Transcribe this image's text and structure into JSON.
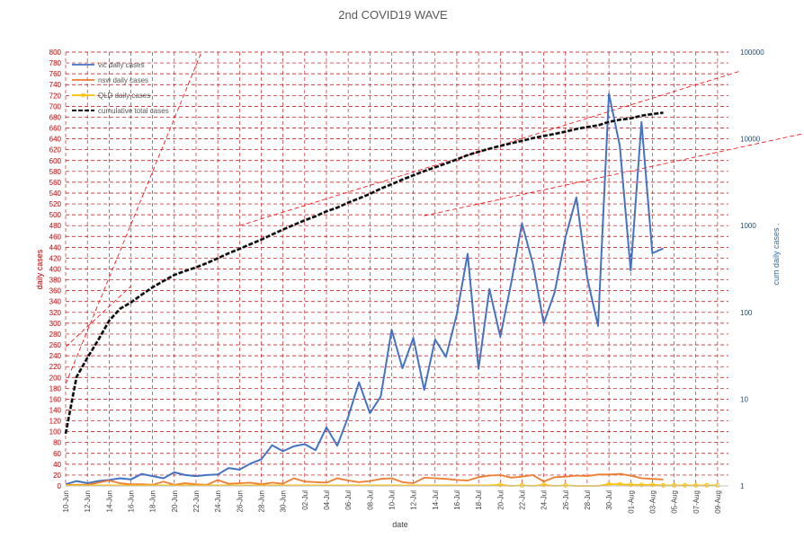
{
  "chart_data": {
    "type": "line",
    "title": "2nd COVID19 WAVE",
    "xlabel": "date",
    "ylabel_left": "daily cases",
    "ylabel_right": "cum daily cases .",
    "ylim_left": [
      0,
      800
    ],
    "ylim_right": [
      1,
      100000
    ],
    "y_right_scale": "log",
    "grid": true,
    "legend_position": "top-left",
    "x_tick_labels": [
      "10-Jun",
      "12-Jun",
      "14-Jun",
      "16-Jun",
      "18-Jun",
      "20-Jun",
      "22-Jun",
      "24-Jun",
      "26-Jun",
      "28-Jun",
      "30-Jun",
      "02-Jul",
      "04-Jul",
      "06-Jul",
      "08-Jul",
      "10-Jul",
      "12-Jul",
      "14-Jul",
      "16-Jul",
      "18-Jul",
      "20-Jul",
      "22-Jul",
      "24-Jul",
      "26-Jul",
      "28-Jul",
      "30-Jul",
      "01-Aug",
      "03-Aug",
      "05-Aug",
      "07-Aug",
      "09-Aug"
    ],
    "y_left_ticks": [
      0,
      20,
      40,
      60,
      80,
      100,
      120,
      140,
      160,
      180,
      200,
      220,
      240,
      260,
      280,
      300,
      320,
      340,
      360,
      380,
      400,
      420,
      440,
      460,
      480,
      500,
      520,
      540,
      560,
      580,
      600,
      620,
      640,
      660,
      680,
      700,
      720,
      740,
      760,
      780,
      800
    ],
    "y_right_ticks": [
      {
        "value": 1,
        "label": "1"
      },
      {
        "value": 10,
        "label": "10"
      },
      {
        "value": 100,
        "label": "100"
      },
      {
        "value": 1000,
        "label": "1000"
      },
      {
        "value": 10000,
        "label": "10000"
      },
      {
        "value": 100000,
        "label": "100000"
      }
    ],
    "series": [
      {
        "name": "vic daily cases",
        "axis": "left",
        "color": "#4472c4",
        "start_day": 0,
        "values": [
          3,
          9,
          5,
          9,
          11,
          14,
          12,
          22,
          18,
          14,
          25,
          20,
          18,
          20,
          21,
          33,
          30,
          41,
          49,
          75,
          64,
          73,
          77,
          66,
          108,
          74,
          127,
          191,
          134,
          165,
          288,
          217,
          273,
          177,
          270,
          238,
          317,
          428,
          216,
          363,
          275,
          374,
          484,
          410,
          300,
          357,
          459,
          532,
          384,
          295,
          723,
          627,
          397,
          671,
          429,
          438
        ]
      },
      {
        "name": "nsw daily cases",
        "axis": "left",
        "color": "#ed7d31",
        "start_day": 0,
        "values": [
          2,
          2,
          2,
          6,
          10,
          5,
          3,
          3,
          2,
          8,
          2,
          5,
          3,
          2,
          11,
          4,
          5,
          6,
          3,
          6,
          4,
          14,
          8,
          7,
          6,
          14,
          10,
          7,
          9,
          13,
          14,
          7,
          5,
          15,
          14,
          13,
          11,
          10,
          16,
          19,
          20,
          15,
          17,
          20,
          8,
          16,
          17,
          19,
          18,
          21,
          21,
          22,
          19,
          14,
          13,
          12
        ]
      },
      {
        "name": "QLD daily cases",
        "axis": "left",
        "color": "#ffc000",
        "start_day": 0,
        "values": [
          1,
          1,
          1,
          1,
          1,
          1,
          1,
          1,
          1,
          1,
          1,
          1,
          1,
          1,
          1,
          1,
          1,
          1,
          1,
          1,
          1,
          1,
          1,
          1,
          1,
          1,
          1,
          1,
          1,
          1,
          1,
          1,
          1,
          1,
          1,
          1,
          1,
          1,
          1,
          1,
          2,
          0,
          1,
          0,
          2,
          0,
          1,
          0,
          0,
          0,
          3,
          3,
          2,
          2,
          2,
          1,
          1,
          1,
          1,
          1,
          1
        ]
      },
      {
        "name": "cumulative total cases",
        "axis": "right",
        "color": "#000000",
        "start_day": 0,
        "values": [
          4,
          18,
          30,
          48,
          80,
          110,
          130,
          160,
          195,
          230,
          270,
          300,
          330,
          370,
          420,
          480,
          540,
          610,
          690,
          790,
          900,
          1020,
          1150,
          1280,
          1460,
          1610,
          1840,
          2060,
          2320,
          2670,
          3000,
          3400,
          3800,
          4250,
          4700,
          5200,
          5800,
          6500,
          7100,
          7700,
          8300,
          8900,
          9500,
          10200,
          10800,
          11400,
          12100,
          13000,
          13700,
          14300,
          15700,
          16600,
          17200,
          18500,
          19300,
          20000
        ]
      }
    ],
    "trendlines": [
      {
        "color": "#ff0000",
        "axis": "right",
        "points": [
          [
            0,
            15
          ],
          [
            12.5,
            100000
          ]
        ]
      },
      {
        "color": "#ff0000",
        "axis": "right",
        "points": [
          [
            0,
            40
          ],
          [
            6,
            200
          ]
        ]
      },
      {
        "color": "#ff0000",
        "axis": "right",
        "points": [
          [
            16,
            1000
          ],
          [
            62,
            60000
          ]
        ]
      },
      {
        "color": "#ff0000",
        "axis": "right",
        "points": [
          [
            33,
            1300
          ],
          [
            79,
            23000
          ]
        ]
      }
    ]
  }
}
